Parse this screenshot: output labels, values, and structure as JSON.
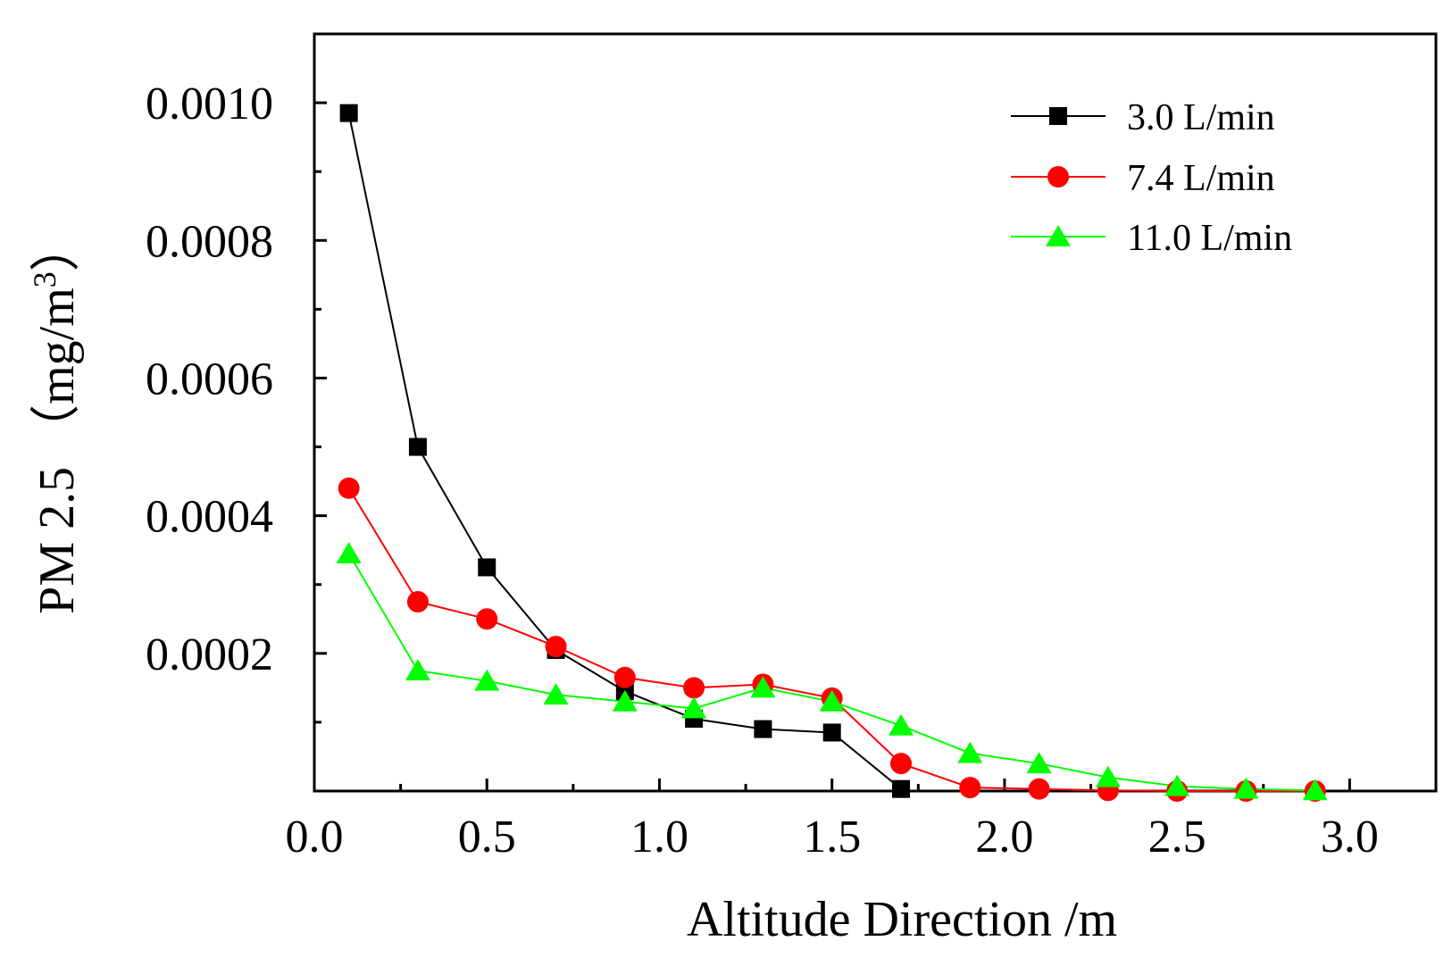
{
  "chart_data": {
    "type": "line",
    "title": "",
    "xlabel": "Altitude Direction  /m",
    "ylabel_main": "PM 2.5  （mg/m",
    "ylabel_sup": "3",
    "ylabel_close": "）",
    "xlim": [
      0.0,
      3.25
    ],
    "ylim": [
      0.0,
      0.0011
    ],
    "xticks": [
      {
        "value": 0.0,
        "label": "0.0"
      },
      {
        "value": 0.5,
        "label": "0.5"
      },
      {
        "value": 1.0,
        "label": "1.0"
      },
      {
        "value": 1.5,
        "label": "1.5"
      },
      {
        "value": 2.0,
        "label": "2.0"
      },
      {
        "value": 2.5,
        "label": "2.5"
      },
      {
        "value": 3.0,
        "label": "3.0"
      }
    ],
    "xminor": [
      0.25,
      0.75,
      1.25,
      1.75,
      2.25,
      2.75
    ],
    "yticks": [
      {
        "value": 0.0002,
        "label": "0.0002"
      },
      {
        "value": 0.0004,
        "label": "0.0004"
      },
      {
        "value": 0.0006,
        "label": "0.0006"
      },
      {
        "value": 0.0008,
        "label": "0.0008"
      },
      {
        "value": 0.001,
        "label": "0.0010"
      }
    ],
    "yminor": [
      0.0001,
      0.0003,
      0.0005,
      0.0007,
      0.0009
    ],
    "x": [
      0.1,
      0.3,
      0.5,
      0.7,
      0.9,
      1.1,
      1.3,
      1.5,
      1.7,
      1.9,
      2.1,
      2.3,
      2.5,
      2.7,
      2.9
    ],
    "series": [
      {
        "name": "3.0 L/min",
        "color": "#000000",
        "marker": "square",
        "values": [
          0.000985,
          0.0005,
          0.000325,
          0.000205,
          0.000145,
          0.000105,
          9e-05,
          8.5e-05,
          3e-06,
          null,
          null,
          null,
          null,
          null,
          null
        ]
      },
      {
        "name": "7.4 L/min",
        "color": "#ff0000",
        "marker": "circle",
        "values": [
          0.00044,
          0.000275,
          0.00025,
          0.00021,
          0.000165,
          0.00015,
          0.000155,
          0.000135,
          4e-05,
          5e-06,
          3e-06,
          1e-06,
          0.0,
          0.0,
          0.0
        ]
      },
      {
        "name": "11.0 L/min",
        "color": "#00ff00",
        "marker": "triangle",
        "values": [
          0.000345,
          0.000175,
          0.00016,
          0.00014,
          0.00013,
          0.00012,
          0.00015,
          0.00013,
          9.5e-05,
          5.5e-05,
          4e-05,
          2e-05,
          7e-06,
          3e-06,
          1e-06
        ]
      }
    ],
    "legend_position": "top-right"
  }
}
